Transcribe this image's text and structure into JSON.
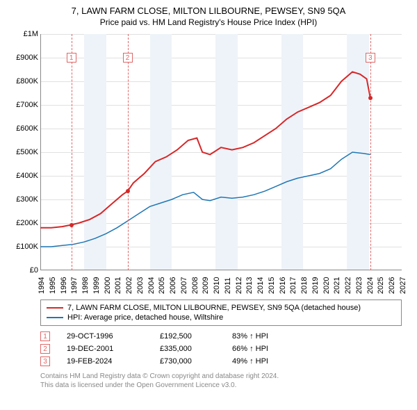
{
  "title": "7, LAWN FARM CLOSE, MILTON LILBOURNE, PEWSEY, SN9 5QA",
  "subtitle": "Price paid vs. HM Land Registry's House Price Index (HPI)",
  "chart": {
    "type": "line",
    "xlim": [
      1994,
      2027
    ],
    "ylim": [
      0,
      1000000
    ],
    "ytick_step": 100000,
    "yticks": [
      "£0",
      "£100K",
      "£200K",
      "£300K",
      "£400K",
      "£500K",
      "£600K",
      "£700K",
      "£800K",
      "£900K",
      "£1M"
    ],
    "xticks": [
      1994,
      1995,
      1996,
      1997,
      1998,
      1999,
      2000,
      2001,
      2002,
      2003,
      2004,
      2005,
      2006,
      2007,
      2008,
      2009,
      2010,
      2011,
      2012,
      2013,
      2014,
      2015,
      2016,
      2017,
      2018,
      2019,
      2020,
      2021,
      2022,
      2023,
      2024,
      2025,
      2026,
      2027
    ],
    "grid_color": "#e0e0e0",
    "background_color": "#ffffff",
    "band_color": "#eef3f9",
    "series": [
      {
        "name": "property",
        "label": "7, LAWN FARM CLOSE, MILTON LILBOURNE, PEWSEY, SN9 5QA (detached house)",
        "color": "#d62728",
        "width": 2,
        "points": [
          [
            1994.0,
            180000
          ],
          [
            1995.0,
            180000
          ],
          [
            1996.0,
            185000
          ],
          [
            1996.8,
            192500
          ],
          [
            1997.5,
            200000
          ],
          [
            1998.5,
            215000
          ],
          [
            1999.5,
            240000
          ],
          [
            2000.5,
            280000
          ],
          [
            2001.5,
            320000
          ],
          [
            2001.97,
            335000
          ],
          [
            2002.5,
            370000
          ],
          [
            2003.5,
            410000
          ],
          [
            2004.5,
            460000
          ],
          [
            2005.5,
            480000
          ],
          [
            2006.5,
            510000
          ],
          [
            2007.5,
            550000
          ],
          [
            2008.3,
            560000
          ],
          [
            2008.8,
            500000
          ],
          [
            2009.5,
            490000
          ],
          [
            2010.5,
            520000
          ],
          [
            2011.5,
            510000
          ],
          [
            2012.5,
            520000
          ],
          [
            2013.5,
            540000
          ],
          [
            2014.5,
            570000
          ],
          [
            2015.5,
            600000
          ],
          [
            2016.5,
            640000
          ],
          [
            2017.5,
            670000
          ],
          [
            2018.5,
            690000
          ],
          [
            2019.5,
            710000
          ],
          [
            2020.5,
            740000
          ],
          [
            2021.5,
            800000
          ],
          [
            2022.5,
            840000
          ],
          [
            2023.2,
            830000
          ],
          [
            2023.8,
            810000
          ],
          [
            2024.13,
            730000
          ]
        ]
      },
      {
        "name": "hpi",
        "label": "HPI: Average price, detached house, Wiltshire",
        "color": "#1f77b4",
        "width": 1.5,
        "points": [
          [
            1994.0,
            100000
          ],
          [
            1995.0,
            100000
          ],
          [
            1996.0,
            105000
          ],
          [
            1997.0,
            110000
          ],
          [
            1998.0,
            120000
          ],
          [
            1999.0,
            135000
          ],
          [
            2000.0,
            155000
          ],
          [
            2001.0,
            180000
          ],
          [
            2002.0,
            210000
          ],
          [
            2003.0,
            240000
          ],
          [
            2004.0,
            270000
          ],
          [
            2005.0,
            285000
          ],
          [
            2006.0,
            300000
          ],
          [
            2007.0,
            320000
          ],
          [
            2008.0,
            330000
          ],
          [
            2008.8,
            300000
          ],
          [
            2009.5,
            295000
          ],
          [
            2010.5,
            310000
          ],
          [
            2011.5,
            305000
          ],
          [
            2012.5,
            310000
          ],
          [
            2013.5,
            320000
          ],
          [
            2014.5,
            335000
          ],
          [
            2015.5,
            355000
          ],
          [
            2016.5,
            375000
          ],
          [
            2017.5,
            390000
          ],
          [
            2018.5,
            400000
          ],
          [
            2019.5,
            410000
          ],
          [
            2020.5,
            430000
          ],
          [
            2021.5,
            470000
          ],
          [
            2022.5,
            500000
          ],
          [
            2023.5,
            495000
          ],
          [
            2024.13,
            490000
          ]
        ]
      }
    ],
    "markers": [
      {
        "n": "1",
        "x": 1996.83,
        "y": 192500,
        "box_y": 900000
      },
      {
        "n": "2",
        "x": 2001.97,
        "y": 335000,
        "box_y": 900000
      },
      {
        "n": "3",
        "x": 2024.13,
        "y": 730000,
        "box_y": 900000
      }
    ],
    "bands": [
      [
        1995,
        1997
      ],
      [
        1998,
        2000
      ],
      [
        2001,
        2003
      ],
      [
        2004,
        2006
      ],
      [
        2007,
        2009
      ],
      [
        2010,
        2012
      ],
      [
        2013,
        2015
      ],
      [
        2016,
        2018
      ],
      [
        2019,
        2021
      ],
      [
        2022,
        2024
      ],
      [
        2025,
        2027
      ]
    ],
    "marker_line_color": "#e06666",
    "marker_dot_color": "#d62728"
  },
  "sales": [
    {
      "n": "1",
      "date": "29-OCT-1996",
      "price": "£192,500",
      "pct": "83% ↑ HPI"
    },
    {
      "n": "2",
      "date": "19-DEC-2001",
      "price": "£335,000",
      "pct": "66% ↑ HPI"
    },
    {
      "n": "3",
      "date": "19-FEB-2024",
      "price": "£730,000",
      "pct": "49% ↑ HPI"
    }
  ],
  "footnote1": "Contains HM Land Registry data © Crown copyright and database right 2024.",
  "footnote2": "This data is licensed under the Open Government Licence v3.0."
}
